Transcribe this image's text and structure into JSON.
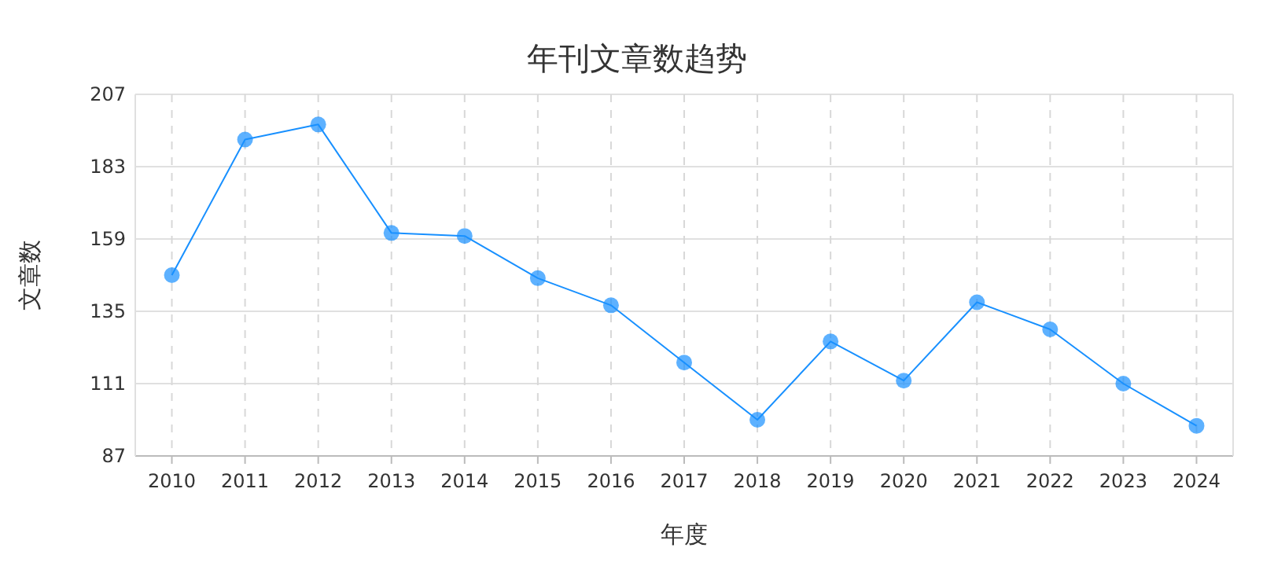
{
  "chart_data": {
    "type": "line",
    "title": "年刊文章数趋势",
    "xlabel": "年度",
    "ylabel": "文章数",
    "categories": [
      "2010",
      "2011",
      "2012",
      "2013",
      "2014",
      "2015",
      "2016",
      "2017",
      "2018",
      "2019",
      "2020",
      "2021",
      "2022",
      "2023",
      "2024"
    ],
    "series": [
      {
        "color": "#1890ff",
        "values": [
          147,
          192,
          197,
          161,
          160,
          146,
          137,
          118,
          99,
          125,
          112,
          138,
          129,
          111,
          97
        ]
      }
    ],
    "ylim": [
      87,
      207
    ],
    "yticks": [
      87,
      111,
      135,
      159,
      183,
      207
    ],
    "grid": true,
    "marker": "circle",
    "line_style": "solid"
  }
}
